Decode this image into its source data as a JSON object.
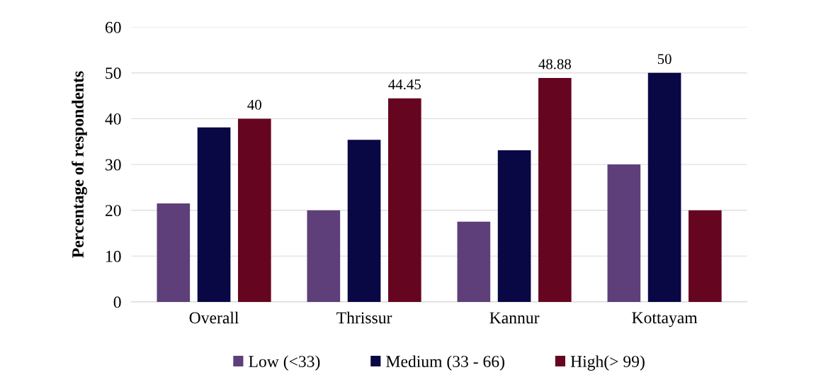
{
  "chart_data": {
    "type": "bar",
    "ylabel": "Percentage of respondents",
    "categories": [
      "Overall",
      "Thrissur",
      "Kannur",
      "Kottayam"
    ],
    "series": [
      {
        "name": "Low (<33)",
        "color": "#5e3f7a",
        "values": [
          21.5,
          20,
          17.5,
          30
        ]
      },
      {
        "name": "Medium (33 - 66)",
        "color": "#0a0745",
        "values": [
          38.1,
          35.4,
          33.1,
          50
        ],
        "value_labels": [
          null,
          null,
          null,
          "50"
        ]
      },
      {
        "name": "High(> 99)",
        "color": "#660520",
        "values": [
          40,
          44.45,
          48.88,
          20
        ],
        "value_labels": [
          "40",
          "44.45",
          "48.88",
          null
        ]
      }
    ],
    "ylim": [
      0,
      60
    ],
    "yticks": [
      0,
      10,
      20,
      30,
      40,
      50,
      60
    ],
    "grid": "y",
    "legend": "bottom"
  }
}
